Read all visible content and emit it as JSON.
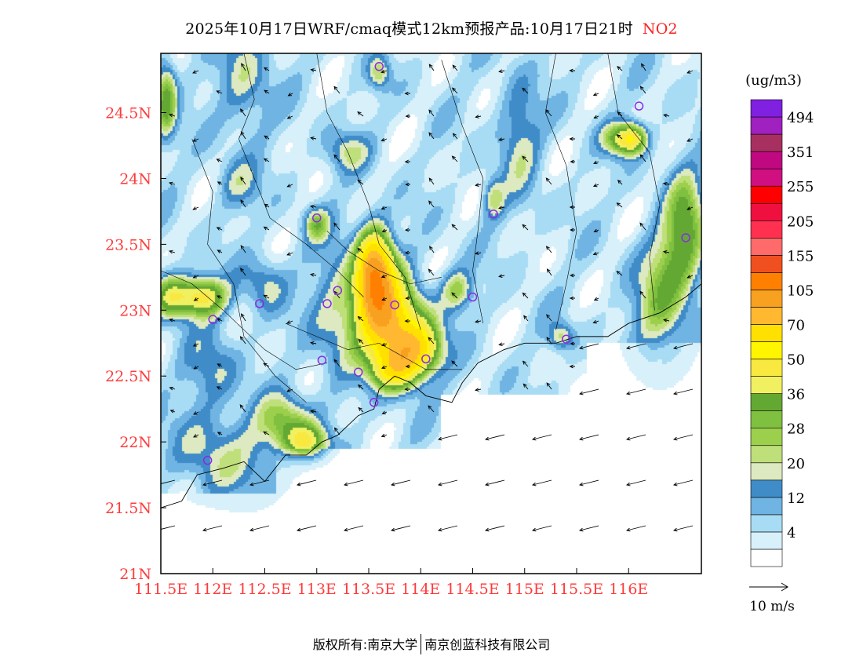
{
  "title": {
    "main": "2025年10月17日WRF/cmaq模式12km预报产品:10月17日21时",
    "species": "NO2",
    "species_color": "#ff2020"
  },
  "footer": {
    "left": "版权所有:南京大学",
    "right": "南京创蓝科技有限公司"
  },
  "axis_color": "#ff3b3b",
  "chart_data": {
    "type": "heatmap",
    "variable": "NO2",
    "unit": "(ug/m3)",
    "xlim": [
      111.5,
      116.7
    ],
    "ylim": [
      21,
      24.95
    ],
    "x_ticks": [
      {
        "value": 111.5,
        "label": "111.5E"
      },
      {
        "value": 112,
        "label": "112E"
      },
      {
        "value": 112.5,
        "label": "112.5E"
      },
      {
        "value": 113,
        "label": "113E"
      },
      {
        "value": 113.5,
        "label": "113.5E"
      },
      {
        "value": 114,
        "label": "114E"
      },
      {
        "value": 114.5,
        "label": "114.5E"
      },
      {
        "value": 115,
        "label": "115E"
      },
      {
        "value": 115.5,
        "label": "115.5E"
      },
      {
        "value": 116,
        "label": "116E"
      }
    ],
    "y_ticks": [
      {
        "value": 21,
        "label": "21N"
      },
      {
        "value": 21.5,
        "label": "21.5N"
      },
      {
        "value": 22,
        "label": "22N"
      },
      {
        "value": 22.5,
        "label": "22.5N"
      },
      {
        "value": 23,
        "label": "23N"
      },
      {
        "value": 23.5,
        "label": "23.5N"
      },
      {
        "value": 24,
        "label": "24N"
      },
      {
        "value": 24.5,
        "label": "24.5N"
      }
    ],
    "legend": {
      "title": "(ug/m3)",
      "bins": [
        {
          "color": "#ffffff"
        },
        {
          "color": "#d8f0fa",
          "label": "4"
        },
        {
          "color": "#a8dcf4"
        },
        {
          "color": "#6fb4e2",
          "label": "12"
        },
        {
          "color": "#3f8cc8"
        },
        {
          "color": "#dde9c0",
          "label": "20"
        },
        {
          "color": "#bfdf7a"
        },
        {
          "color": "#9ccf4c",
          "label": "28"
        },
        {
          "color": "#80c040"
        },
        {
          "color": "#64a834",
          "label": "36"
        },
        {
          "color": "#f0f060"
        },
        {
          "color": "#f8e840",
          "label": "50"
        },
        {
          "color": "#fff500"
        },
        {
          "color": "#ffe000",
          "label": "70"
        },
        {
          "color": "#ffb830"
        },
        {
          "color": "#f8a020",
          "label": "105"
        },
        {
          "color": "#ff8000"
        },
        {
          "color": "#f05020",
          "label": "155"
        },
        {
          "color": "#ff6a6a"
        },
        {
          "color": "#ff3050",
          "label": "205"
        },
        {
          "color": "#f01040"
        },
        {
          "color": "#ff0000",
          "label": "255"
        },
        {
          "color": "#d01080"
        },
        {
          "color": "#c00880",
          "label": "351"
        },
        {
          "color": "#a83060"
        },
        {
          "color": "#a020c0",
          "label": "494"
        },
        {
          "color": "#8020e0"
        }
      ]
    },
    "wind_scale": {
      "label": "10 m/s"
    },
    "hotspots": [
      {
        "x": 113.6,
        "y": 23.05,
        "value": 72
      },
      {
        "x": 113.55,
        "y": 23.3,
        "value": 80
      },
      {
        "x": 113.95,
        "y": 22.7,
        "value": 55
      },
      {
        "x": 113.8,
        "y": 22.85,
        "value": 45
      },
      {
        "x": 113.75,
        "y": 22.55,
        "value": 48
      },
      {
        "x": 111.9,
        "y": 23.1,
        "value": 45
      },
      {
        "x": 111.6,
        "y": 23.1,
        "value": 35
      },
      {
        "x": 112.9,
        "y": 22.0,
        "value": 35
      },
      {
        "x": 112.7,
        "y": 22.15,
        "value": 26
      },
      {
        "x": 111.55,
        "y": 24.6,
        "value": 32
      },
      {
        "x": 115.95,
        "y": 24.3,
        "value": 36
      },
      {
        "x": 116.05,
        "y": 24.3,
        "value": 26
      },
      {
        "x": 116.55,
        "y": 23.7,
        "value": 28
      },
      {
        "x": 116.45,
        "y": 23.35,
        "value": 20
      },
      {
        "x": 116.3,
        "y": 23.0,
        "value": 20
      },
      {
        "x": 114.35,
        "y": 23.15,
        "value": 22
      },
      {
        "x": 113.0,
        "y": 23.65,
        "value": 22
      },
      {
        "x": 115.35,
        "y": 22.8,
        "value": 18
      },
      {
        "x": 113.2,
        "y": 23.0,
        "value": 16
      },
      {
        "x": 112.5,
        "y": 23.2,
        "value": 14
      },
      {
        "x": 113.6,
        "y": 24.8,
        "value": 18
      },
      {
        "x": 114.7,
        "y": 23.85,
        "value": 18
      },
      {
        "x": 113.3,
        "y": 24.2,
        "value": 15
      },
      {
        "x": 112.3,
        "y": 24.75,
        "value": 14
      },
      {
        "x": 112.25,
        "y": 23.95,
        "value": 12
      },
      {
        "x": 114.95,
        "y": 24.3,
        "value": 14
      },
      {
        "x": 112.0,
        "y": 22.55,
        "value": 12
      },
      {
        "x": 111.9,
        "y": 21.95,
        "value": 12
      },
      {
        "x": 112.35,
        "y": 21.85,
        "value": 10
      }
    ],
    "stations": [
      {
        "x": 113.6,
        "y": 24.85
      },
      {
        "x": 116.1,
        "y": 24.55
      },
      {
        "x": 113.0,
        "y": 23.7
      },
      {
        "x": 114.7,
        "y": 23.73
      },
      {
        "x": 116.55,
        "y": 23.55
      },
      {
        "x": 113.2,
        "y": 23.15
      },
      {
        "x": 112.45,
        "y": 23.05
      },
      {
        "x": 113.1,
        "y": 23.05
      },
      {
        "x": 113.75,
        "y": 23.04
      },
      {
        "x": 114.5,
        "y": 23.1
      },
      {
        "x": 112.0,
        "y": 22.93
      },
      {
        "x": 115.4,
        "y": 22.78
      },
      {
        "x": 113.05,
        "y": 22.62
      },
      {
        "x": 114.05,
        "y": 22.63
      },
      {
        "x": 113.4,
        "y": 22.53
      },
      {
        "x": 113.55,
        "y": 22.3
      },
      {
        "x": 111.95,
        "y": 21.86
      }
    ]
  }
}
